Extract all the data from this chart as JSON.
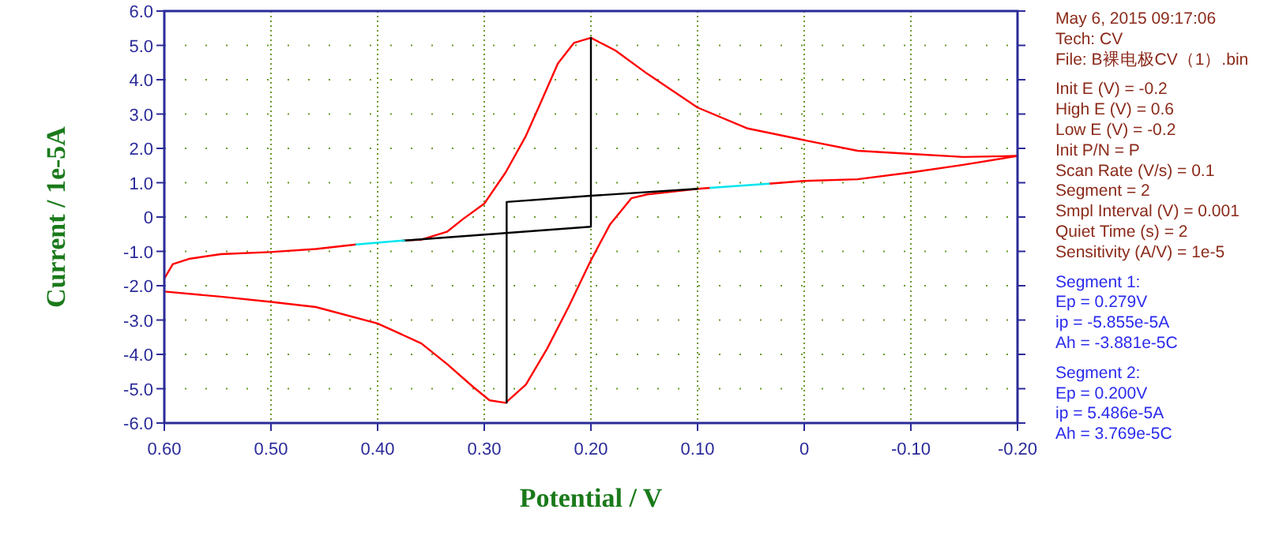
{
  "chart_data": {
    "type": "line",
    "xlabel": "Potential / V",
    "ylabel": "Current / 1e-5A",
    "xlim": [
      0.6,
      -0.2
    ],
    "ylim": [
      -6,
      6
    ],
    "xticks": [
      {
        "value": 0.6,
        "label": "0.60"
      },
      {
        "value": 0.5,
        "label": "0.50"
      },
      {
        "value": 0.4,
        "label": "0.40"
      },
      {
        "value": 0.3,
        "label": "0.30"
      },
      {
        "value": 0.2,
        "label": "0.20"
      },
      {
        "value": 0.1,
        "label": "0.10"
      },
      0,
      {
        "value": -0.1,
        "label": "-0.10"
      },
      {
        "value": -0.2,
        "label": "-0.20"
      }
    ],
    "yticks": [
      {
        "value": 6,
        "label": "6.0"
      },
      {
        "value": 5,
        "label": "5.0"
      },
      {
        "value": 4,
        "label": "4.0"
      },
      {
        "value": 3,
        "label": "3.0"
      },
      {
        "value": 2,
        "label": "2.0"
      },
      {
        "value": 1,
        "label": "1.0"
      },
      0,
      {
        "value": -1,
        "label": "-1.0"
      },
      {
        "value": -2,
        "label": "-2.0"
      },
      {
        "value": -3,
        "label": "-3.0"
      },
      {
        "value": -4,
        "label": "-4.0"
      },
      {
        "value": -5,
        "label": "-5.0"
      },
      {
        "value": -6,
        "label": "-6.0"
      }
    ],
    "grid": true,
    "series": [
      {
        "color": "#ff0000",
        "x": [
          0.6,
          0.592,
          0.577,
          0.547,
          0.501,
          0.458,
          0.42
        ],
        "values": [
          -1.79,
          -1.37,
          -1.22,
          -1.08,
          -1.02,
          -0.93,
          -0.8
        ]
      },
      {
        "color": "#ff0000",
        "x": [
          0.375,
          0.359,
          0.335,
          0.32,
          0.3,
          0.28,
          0.261,
          0.246,
          0.231,
          0.216,
          0.2,
          0.177,
          0.147,
          0.1,
          0.053,
          0,
          -0.05,
          -0.1,
          -0.149,
          -0.2
        ],
        "values": [
          -0.68,
          -0.66,
          -0.43,
          -0.06,
          0.39,
          1.3,
          2.36,
          3.41,
          4.47,
          5.07,
          5.22,
          4.85,
          4.17,
          3.19,
          2.58,
          2.24,
          1.93,
          1.84,
          1.75,
          1.78
        ]
      },
      {
        "color": "#ff0000",
        "x": [
          0.6,
          0.547,
          0.5,
          0.458,
          0.4,
          0.359,
          0.335,
          0.31,
          0.295,
          0.28,
          0.261,
          0.241,
          0.221,
          0.2,
          0.182,
          0.162,
          0.147,
          0.1,
          0.088
        ],
        "values": [
          -2.17,
          -2.32,
          -2.47,
          -2.62,
          -3.1,
          -3.68,
          -4.28,
          -4.96,
          -5.34,
          -5.41,
          -4.88,
          -3.83,
          -2.62,
          -1.26,
          -0.21,
          0.55,
          0.66,
          0.82,
          0.85
        ]
      },
      {
        "color": "#ff0000",
        "x": [
          0.033,
          0,
          -0.05,
          -0.1,
          -0.149,
          -0.2
        ],
        "values": [
          0.97,
          1.05,
          1.1,
          1.3,
          1.52,
          1.78
        ]
      },
      {
        "color": "#000000",
        "x": [
          0.377,
          0.2,
          0.2
        ],
        "values": [
          -0.69,
          -0.28,
          5.22
        ]
      },
      {
        "color": "#000000",
        "x": [
          0.1,
          0.2,
          0.279,
          0.279
        ],
        "values": [
          0.82,
          0.62,
          0.44,
          -5.41
        ]
      },
      {
        "color": "#00e5ee",
        "x": [
          0.42,
          0.375
        ],
        "values": [
          -0.8,
          -0.68
        ]
      },
      {
        "color": "#00e5ee",
        "x": [
          0.088,
          0.033
        ],
        "values": [
          0.85,
          0.97
        ]
      }
    ],
    "annotations": [
      "May 6, 2015   09:17:06",
      "Tech: CV",
      "File: B裸电极CV（1）.bin",
      "Init E (V) = -0.2",
      "High E (V) = 0.6",
      "Low E (V) = -0.2",
      "Init P/N = P",
      "Scan Rate (V/s) = 0.1",
      "Segment = 2",
      "Smpl Interval (V) = 0.001",
      "Quiet Time (s) = 2",
      "Sensitivity (A/V) = 1e-5",
      "Segment 1:",
      "Ep = 0.279V",
      "ip = -5.855e-5A",
      "Ah = -3.881e-5C",
      "Segment 2:",
      "Ep = 0.200V",
      "ip = 5.486e-5A",
      "Ah = 3.769e-5C"
    ]
  }
}
